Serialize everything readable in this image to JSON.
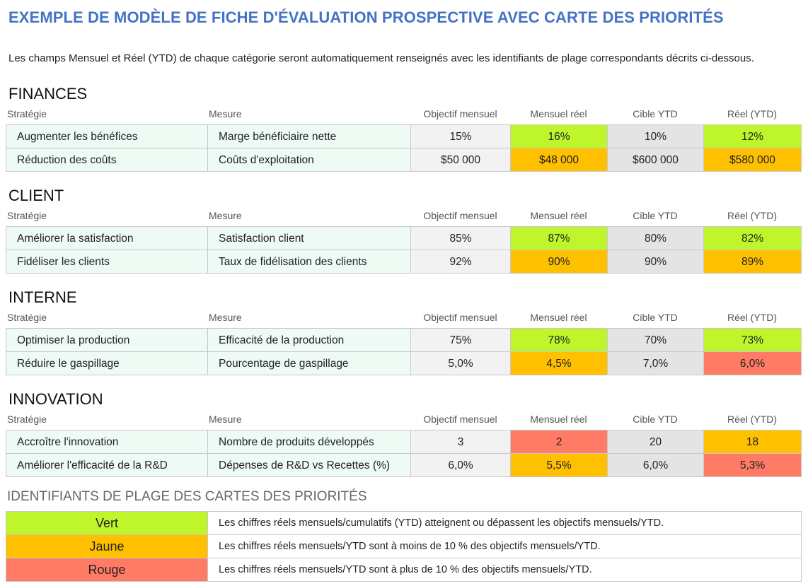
{
  "header": {
    "title": "EXEMPLE DE MODÈLE DE FICHE D'ÉVALUATION PROSPECTIVE AVEC CARTE DES PRIORITÉS",
    "description": "Les champs Mensuel et Réel (YTD) de chaque catégorie seront automatiquement renseignés avec les identifiants de plage correspondants décrits ci-dessous."
  },
  "sections": [
    {
      "title": "FINANCES",
      "columns": [
        "Stratégie",
        "Mesure",
        "Objectif mensuel",
        "Mensuel réel",
        "Cible YTD",
        "Réel (YTD)"
      ],
      "rows": [
        {
          "cells": [
            "Augmenter les bénéfices",
            "Marge bénéficiaire nette",
            "15%",
            "16%",
            "10%",
            "12%"
          ],
          "fills": [
            "#eefaf4",
            "#eefaf4",
            "#f2f2f2",
            "#bff52b",
            "#e4e4e4",
            "#bff52b"
          ]
        },
        {
          "cells": [
            "Réduction des coûts",
            "Coûts d'exploitation",
            "$50 000",
            "$48 000",
            "$600 000",
            "$580 000"
          ],
          "fills": [
            "#eefaf4",
            "#eefaf4",
            "#f2f2f2",
            "#ffc000",
            "#e4e4e4",
            "#ffc000"
          ]
        }
      ]
    },
    {
      "title": "CLIENT",
      "columns": [
        "Stratégie",
        "Mesure",
        "Objectif mensuel",
        "Mensuel réel",
        "Cible YTD",
        "Réel (YTD)"
      ],
      "rows": [
        {
          "cells": [
            "Améliorer la satisfaction",
            "Satisfaction client",
            "85%",
            "87%",
            "80%",
            "82%"
          ],
          "fills": [
            "#eefaf4",
            "#eefaf4",
            "#f2f2f2",
            "#bff52b",
            "#e4e4e4",
            "#bff52b"
          ]
        },
        {
          "cells": [
            "Fidéliser les clients",
            "Taux de fidélisation des clients",
            "92%",
            "90%",
            "90%",
            "89%"
          ],
          "fills": [
            "#eefaf4",
            "#eefaf4",
            "#f2f2f2",
            "#ffc000",
            "#e4e4e4",
            "#ffc000"
          ]
        }
      ]
    },
    {
      "title": "INTERNE",
      "columns": [
        "Stratégie",
        "Mesure",
        "Objectif mensuel",
        "Mensuel réel",
        "Cible YTD",
        "Réel (YTD)"
      ],
      "rows": [
        {
          "cells": [
            "Optimiser la production",
            "Efficacité de la production",
            "75%",
            "78%",
            "70%",
            "73%"
          ],
          "fills": [
            "#eefaf4",
            "#eefaf4",
            "#f2f2f2",
            "#bff52b",
            "#e4e4e4",
            "#bff52b"
          ]
        },
        {
          "cells": [
            "Réduire le gaspillage",
            "Pourcentage de gaspillage",
            "5,0%",
            "4,5%",
            "7,0%",
            "6,0%"
          ],
          "fills": [
            "#eefaf4",
            "#eefaf4",
            "#f2f2f2",
            "#ffc000",
            "#e4e4e4",
            "#ff7b66"
          ]
        }
      ]
    },
    {
      "title": "INNOVATION",
      "columns": [
        "Stratégie",
        "Mesure",
        "Objectif mensuel",
        "Mensuel réel",
        "Cible YTD",
        "Réel (YTD)"
      ],
      "rows": [
        {
          "cells": [
            "Accroître l'innovation",
            "Nombre de produits développés",
            "3",
            "2",
            "20",
            "18"
          ],
          "fills": [
            "#eefaf4",
            "#eefaf4",
            "#f2f2f2",
            "#ff7b66",
            "#e4e4e4",
            "#ffc000"
          ]
        },
        {
          "cells": [
            "Améliorer l'efficacité de la R&D",
            "Dépenses de R&D vs Recettes (%)",
            "6,0%",
            "5,5%",
            "6,0%",
            "5,3%"
          ],
          "fills": [
            "#eefaf4",
            "#eefaf4",
            "#f2f2f2",
            "#ffc000",
            "#e4e4e4",
            "#ff7b66"
          ]
        }
      ]
    }
  ],
  "legend": {
    "title": "IDENTIFIANTS DE PLAGE DES CARTES DES PRIORITÉS",
    "rows": [
      {
        "label": "Vert",
        "description": "Les chiffres réels mensuels/cumulatifs (YTD) atteignent ou dépassent les objectifs mensuels/YTD.",
        "color": "#bff52b"
      },
      {
        "label": "Jaune",
        "description": "Les chiffres réels mensuels/YTD sont à moins de 10 % des objectifs mensuels/YTD.",
        "color": "#ffc000"
      },
      {
        "label": "Rouge",
        "description": "Les chiffres réels mensuels/YTD sont à plus de 10 % des objectifs mensuels/YTD.",
        "color": "#ff7b66"
      }
    ]
  }
}
